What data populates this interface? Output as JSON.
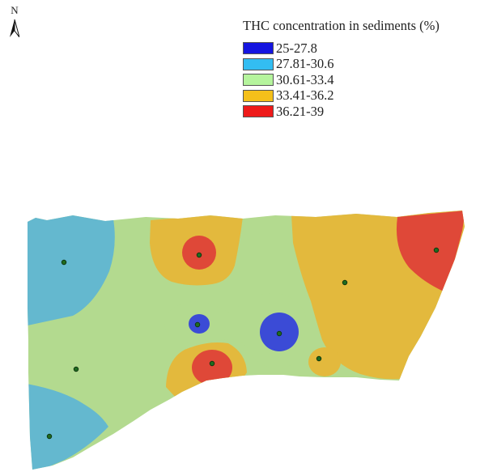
{
  "north_label": "N",
  "legend": {
    "title": "THC concentration in sediments (%)",
    "classes": [
      {
        "label": "25-27.8",
        "color": "#1515e0",
        "map_color": "#3b4bd6"
      },
      {
        "label": "27.81-30.6",
        "color": "#33bdf2",
        "map_color": "#64b8cf"
      },
      {
        "label": "30.61-33.4",
        "color": "#b5f49d",
        "map_color": "#b3da8f"
      },
      {
        "label": "33.41-36.2",
        "color": "#f5c01a",
        "map_color": "#e3b93d"
      },
      {
        "label": "36.21-39",
        "color": "#ee1a1a",
        "map_color": "#df4838"
      }
    ]
  },
  "sample_point_count": 11
}
